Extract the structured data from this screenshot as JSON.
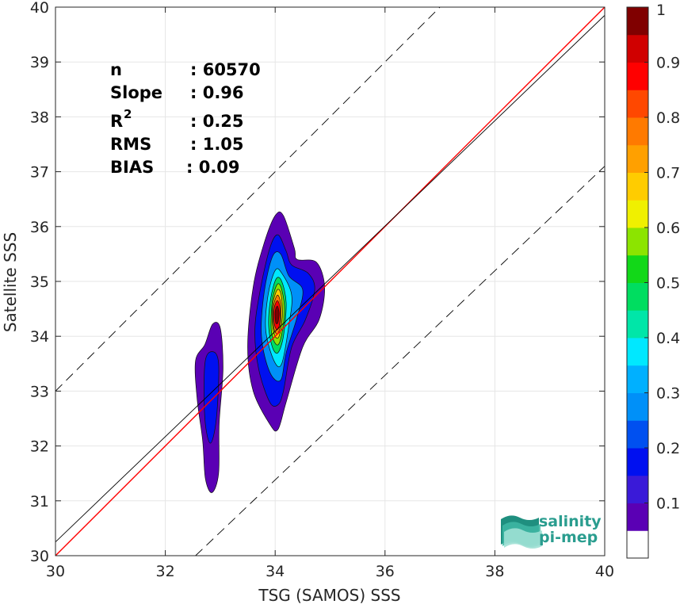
{
  "chart_data": {
    "type": "contour",
    "xlabel": "TSG (SAMOS) SSS",
    "ylabel": "Satellite SSS",
    "xlim": [
      30,
      40
    ],
    "ylim": [
      30,
      40
    ],
    "x_ticks": [
      30,
      32,
      34,
      36,
      38,
      40
    ],
    "y_ticks": [
      30,
      31,
      32,
      33,
      34,
      35,
      36,
      37,
      38,
      39,
      40
    ],
    "grid": true,
    "stats": {
      "n_label": "n",
      "n_value": ": 60570",
      "slope_label": "Slope",
      "slope_value": ": 0.96",
      "r2_label": "R",
      "r2_sup": "2",
      "r2_value": ": 0.25",
      "rms_label": "RMS",
      "rms_value": ": 1.05",
      "bias_label": "BIAS",
      "bias_value": ": 0.09"
    },
    "lines": [
      {
        "name": "1:1",
        "color": "#ff0000",
        "style": "solid",
        "x": [
          30,
          40
        ],
        "y": [
          30,
          40
        ]
      },
      {
        "name": "fit",
        "color": "#000000",
        "style": "solid",
        "x": [
          30,
          40
        ],
        "y": [
          30.25,
          39.85
        ]
      },
      {
        "name": "upper bound",
        "color": "#000000",
        "style": "dashed",
        "x": [
          30,
          37.0
        ],
        "y": [
          33.0,
          40
        ]
      },
      {
        "name": "lower bound",
        "color": "#000000",
        "style": "dashed",
        "x": [
          32.55,
          40
        ],
        "y": [
          30,
          37.1
        ]
      }
    ],
    "density_clusters": [
      {
        "levels": [
          {
            "level": 0.05,
            "points": [
              [
                32.55,
                33.55
              ],
              [
                32.72,
                33.85
              ],
              [
                32.86,
                34.22
              ],
              [
                33.0,
                34.15
              ],
              [
                33.05,
                33.4
              ],
              [
                32.98,
                32.4
              ],
              [
                32.97,
                31.5
              ],
              [
                32.85,
                31.15
              ],
              [
                32.73,
                31.4
              ],
              [
                32.68,
                32.1
              ],
              [
                32.58,
                32.85
              ]
            ]
          },
          {
            "level": 0.15,
            "points": [
              [
                32.72,
                33.5
              ],
              [
                32.85,
                33.72
              ],
              [
                32.97,
                33.5
              ],
              [
                32.93,
                32.5
              ],
              [
                32.82,
                32.05
              ],
              [
                32.72,
                32.5
              ]
            ]
          }
        ]
      },
      {
        "levels": [
          {
            "level": 0.05,
            "points": [
              [
                33.6,
                34.9
              ],
              [
                33.8,
                35.7
              ],
              [
                34.0,
                36.2
              ],
              [
                34.15,
                36.2
              ],
              [
                34.35,
                35.6
              ],
              [
                34.4,
                35.4
              ],
              [
                34.75,
                35.35
              ],
              [
                34.9,
                34.9
              ],
              [
                34.8,
                34.3
              ],
              [
                34.5,
                33.8
              ],
              [
                34.2,
                32.8
              ],
              [
                34.05,
                32.3
              ],
              [
                33.9,
                32.4
              ],
              [
                33.6,
                33.0
              ],
              [
                33.5,
                33.8
              ]
            ]
          },
          {
            "level": 0.15,
            "points": [
              [
                33.72,
                34.8
              ],
              [
                33.9,
                35.6
              ],
              [
                34.05,
                35.85
              ],
              [
                34.2,
                35.55
              ],
              [
                34.3,
                35.3
              ],
              [
                34.6,
                35.15
              ],
              [
                34.72,
                34.85
              ],
              [
                34.55,
                34.3
              ],
              [
                34.3,
                33.8
              ],
              [
                34.15,
                33.0
              ],
              [
                34.05,
                32.75
              ],
              [
                33.9,
                32.8
              ],
              [
                33.7,
                33.4
              ],
              [
                33.63,
                34.1
              ]
            ]
          },
          {
            "level": 0.25,
            "points": [
              [
                33.8,
                34.8
              ],
              [
                33.95,
                35.45
              ],
              [
                34.1,
                35.5
              ],
              [
                34.25,
                35.1
              ],
              [
                34.5,
                34.85
              ],
              [
                34.4,
                34.35
              ],
              [
                34.2,
                33.7
              ],
              [
                34.1,
                33.2
              ],
              [
                33.9,
                33.35
              ],
              [
                33.75,
                34.0
              ]
            ]
          },
          {
            "level": 0.35,
            "points": [
              [
                33.87,
                34.75
              ],
              [
                34.0,
                35.2
              ],
              [
                34.12,
                35.15
              ],
              [
                34.3,
                34.75
              ],
              [
                34.25,
                34.2
              ],
              [
                34.12,
                33.5
              ],
              [
                33.98,
                33.55
              ],
              [
                33.83,
                34.1
              ]
            ]
          },
          {
            "level": 0.45,
            "points": [
              [
                33.92,
                34.7
              ],
              [
                34.02,
                35.05
              ],
              [
                34.12,
                35.0
              ],
              [
                34.2,
                34.6
              ],
              [
                34.15,
                34.0
              ],
              [
                34.05,
                33.7
              ],
              [
                33.95,
                33.8
              ],
              [
                33.88,
                34.2
              ]
            ]
          },
          {
            "level": 0.55,
            "points": [
              [
                33.95,
                34.65
              ],
              [
                34.04,
                34.95
              ],
              [
                34.12,
                34.85
              ],
              [
                34.17,
                34.45
              ],
              [
                34.1,
                33.95
              ],
              [
                34.02,
                33.85
              ],
              [
                33.93,
                34.1
              ]
            ]
          },
          {
            "level": 0.65,
            "points": [
              [
                33.96,
                34.6
              ],
              [
                34.04,
                34.85
              ],
              [
                34.11,
                34.75
              ],
              [
                34.13,
                34.35
              ],
              [
                34.07,
                34.0
              ],
              [
                34.0,
                34.0
              ],
              [
                33.95,
                34.25
              ]
            ]
          },
          {
            "level": 0.75,
            "points": [
              [
                33.97,
                34.55
              ],
              [
                34.04,
                34.75
              ],
              [
                34.1,
                34.6
              ],
              [
                34.1,
                34.25
              ],
              [
                34.05,
                34.05
              ],
              [
                33.99,
                34.1
              ],
              [
                33.96,
                34.3
              ]
            ]
          },
          {
            "level": 0.85,
            "points": [
              [
                33.98,
                34.5
              ],
              [
                34.04,
                34.65
              ],
              [
                34.09,
                34.5
              ],
              [
                34.08,
                34.22
              ],
              [
                34.03,
                34.12
              ],
              [
                33.98,
                34.25
              ]
            ]
          },
          {
            "level": 0.95,
            "points": [
              [
                34.0,
                34.45
              ],
              [
                34.04,
                34.55
              ],
              [
                34.07,
                34.42
              ],
              [
                34.05,
                34.25
              ],
              [
                34.01,
                34.25
              ]
            ]
          }
        ]
      }
    ],
    "colorbar": {
      "range": [
        0,
        1
      ],
      "ticks": [
        0.1,
        0.2,
        0.3,
        0.4,
        0.5,
        0.6,
        0.7,
        0.8,
        0.9,
        1
      ],
      "tick_labels": [
        "0.1",
        "0.2",
        "0.3",
        "0.4",
        "0.5",
        "0.6",
        "0.7",
        "0.8",
        "0.9",
        "1"
      ],
      "bottom_white_until": 0.05,
      "bands": [
        {
          "from": 0.05,
          "to": 0.1,
          "color": "#5a00b4"
        },
        {
          "from": 0.1,
          "to": 0.15,
          "color": "#3a1ad8"
        },
        {
          "from": 0.15,
          "to": 0.2,
          "color": "#0010f0"
        },
        {
          "from": 0.2,
          "to": 0.25,
          "color": "#0050f0"
        },
        {
          "from": 0.25,
          "to": 0.3,
          "color": "#0090f8"
        },
        {
          "from": 0.3,
          "to": 0.35,
          "color": "#00b0ff"
        },
        {
          "from": 0.35,
          "to": 0.4,
          "color": "#00e8ff"
        },
        {
          "from": 0.4,
          "to": 0.45,
          "color": "#00e6a8"
        },
        {
          "from": 0.45,
          "to": 0.5,
          "color": "#00dd60"
        },
        {
          "from": 0.5,
          "to": 0.55,
          "color": "#12d818"
        },
        {
          "from": 0.55,
          "to": 0.6,
          "color": "#8ce400"
        },
        {
          "from": 0.6,
          "to": 0.65,
          "color": "#f0f000"
        },
        {
          "from": 0.65,
          "to": 0.7,
          "color": "#ffcc00"
        },
        {
          "from": 0.7,
          "to": 0.75,
          "color": "#ffa000"
        },
        {
          "from": 0.75,
          "to": 0.8,
          "color": "#ff7a00"
        },
        {
          "from": 0.8,
          "to": 0.85,
          "color": "#ff4800"
        },
        {
          "from": 0.85,
          "to": 0.9,
          "color": "#ff0000"
        },
        {
          "from": 0.9,
          "to": 0.95,
          "color": "#d00000"
        },
        {
          "from": 0.95,
          "to": 1.0,
          "color": "#800000"
        }
      ]
    }
  },
  "logo": {
    "line1": "salinity",
    "line2": "pi-mep",
    "name": "salinity-pi-mep-logo"
  }
}
